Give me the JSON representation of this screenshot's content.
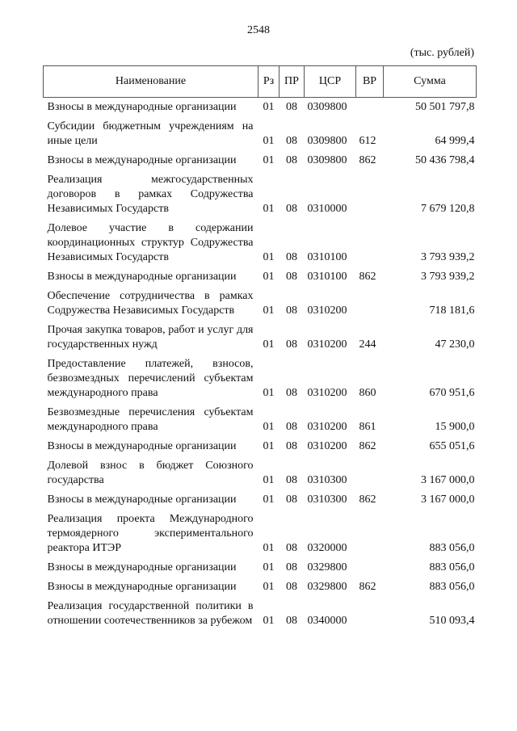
{
  "page_number": "2548",
  "units": "(тыс. рублей)",
  "headers": {
    "name": "Наименование",
    "rz": "Рз",
    "pr": "ПР",
    "csr": "ЦСР",
    "vr": "ВР",
    "sum": "Сумма"
  },
  "rows": [
    {
      "name": "Взносы в международные организации",
      "rz": "01",
      "pr": "08",
      "csr": "0309800",
      "vr": "",
      "sum": "50 501 797,8"
    },
    {
      "name": "Субсидии бюджетным учреждениям на иные цели",
      "rz": "01",
      "pr": "08",
      "csr": "0309800",
      "vr": "612",
      "sum": "64 999,4"
    },
    {
      "name": "Взносы в международные организации",
      "rz": "01",
      "pr": "08",
      "csr": "0309800",
      "vr": "862",
      "sum": "50 436 798,4"
    },
    {
      "name": "Реализация межгосударственных договоров в рамках Содружества Независимых Государств",
      "rz": "01",
      "pr": "08",
      "csr": "0310000",
      "vr": "",
      "sum": "7 679 120,8"
    },
    {
      "name": "Долевое участие в содержании координационных структур Содружества Независимых Государств",
      "rz": "01",
      "pr": "08",
      "csr": "0310100",
      "vr": "",
      "sum": "3 793 939,2"
    },
    {
      "name": "Взносы в международные организации",
      "rz": "01",
      "pr": "08",
      "csr": "0310100",
      "vr": "862",
      "sum": "3 793 939,2"
    },
    {
      "name": "Обеспечение сотрудничества в рамках Содружества Независимых Государств",
      "rz": "01",
      "pr": "08",
      "csr": "0310200",
      "vr": "",
      "sum": "718 181,6"
    },
    {
      "name": "Прочая закупка товаров, работ и услуг для государственных нужд",
      "rz": "01",
      "pr": "08",
      "csr": "0310200",
      "vr": "244",
      "sum": "47 230,0"
    },
    {
      "name": "Предоставление платежей, взносов, безвозмездных перечислений субъектам международного права",
      "rz": "01",
      "pr": "08",
      "csr": "0310200",
      "vr": "860",
      "sum": "670 951,6"
    },
    {
      "name": "Безвозмездные перечисления субъектам международного права",
      "rz": "01",
      "pr": "08",
      "csr": "0310200",
      "vr": "861",
      "sum": "15 900,0"
    },
    {
      "name": "Взносы в международные организации",
      "rz": "01",
      "pr": "08",
      "csr": "0310200",
      "vr": "862",
      "sum": "655 051,6"
    },
    {
      "name": "Долевой взнос в бюджет Союзного государства",
      "rz": "01",
      "pr": "08",
      "csr": "0310300",
      "vr": "",
      "sum": "3 167 000,0"
    },
    {
      "name": "Взносы в международные организации",
      "rz": "01",
      "pr": "08",
      "csr": "0310300",
      "vr": "862",
      "sum": "3 167 000,0"
    },
    {
      "name": "Реализация проекта Международного термоядерного экспериментального реактора ИТЭР",
      "rz": "01",
      "pr": "08",
      "csr": "0320000",
      "vr": "",
      "sum": "883 056,0"
    },
    {
      "name": "Взносы в международные организации",
      "rz": "01",
      "pr": "08",
      "csr": "0329800",
      "vr": "",
      "sum": "883 056,0"
    },
    {
      "name": "Взносы в международные организации",
      "rz": "01",
      "pr": "08",
      "csr": "0329800",
      "vr": "862",
      "sum": "883 056,0"
    },
    {
      "name": "Реализация государственной политики в отношении соотечественников за рубежом",
      "rz": "01",
      "pr": "08",
      "csr": "0340000",
      "vr": "",
      "sum": "510 093,4"
    }
  ]
}
